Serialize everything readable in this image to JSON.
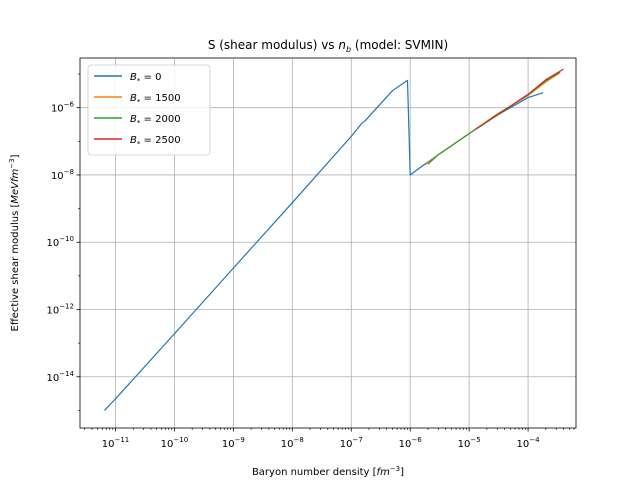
{
  "chart_data": {
    "type": "line",
    "title": "S (shear modulus) vs n_b (model: SVMIN)",
    "title_parts": {
      "prefix": "S (shear modulus) vs ",
      "var": "n",
      "sub": "b",
      "suffix": " (model: SVMIN)"
    },
    "xlabel": "Baryon number density [fm⁻³]",
    "xlabel_parts": {
      "prefix": "Baryon number density [",
      "unit": "fm",
      "exp": "−3",
      "suffix": "]"
    },
    "ylabel": "Effective shear modulus [MeVfm⁻³]",
    "ylabel_parts": {
      "prefix": "Effective shear modulus [",
      "unit": "MeVfm",
      "exp": "−3",
      "suffix": "]"
    },
    "xscale": "log",
    "yscale": "log",
    "xlim": [
      2.5e-12,
      0.00065
    ],
    "ylim": [
      3e-16,
      3e-05
    ],
    "xticks": [
      1e-11,
      1e-10,
      1e-09,
      1e-08,
      1e-07,
      1e-06,
      1e-05,
      0.0001
    ],
    "xtick_labels": [
      {
        "base": "10",
        "exp": "−11"
      },
      {
        "base": "10",
        "exp": "−10"
      },
      {
        "base": "10",
        "exp": "−9"
      },
      {
        "base": "10",
        "exp": "−8"
      },
      {
        "base": "10",
        "exp": "−7"
      },
      {
        "base": "10",
        "exp": "−6"
      },
      {
        "base": "10",
        "exp": "−5"
      },
      {
        "base": "10",
        "exp": "−4"
      }
    ],
    "yticks": [
      1e-14,
      1e-12,
      1e-10,
      1e-08,
      1e-06
    ],
    "ytick_labels": [
      {
        "base": "10",
        "exp": "−14"
      },
      {
        "base": "10",
        "exp": "−12"
      },
      {
        "base": "10",
        "exp": "−10"
      },
      {
        "base": "10",
        "exp": "−8"
      },
      {
        "base": "10",
        "exp": "−6"
      }
    ],
    "grid": true,
    "legend_position": "top-left",
    "series": [
      {
        "name": "B* = 0",
        "label_parts": {
          "sym": "B",
          "sub": "*",
          "value": " = 0"
        },
        "color": "#1f77b4",
        "x": [
          6.5e-12,
          1e-11,
          1e-10,
          1e-09,
          1e-08,
          1e-07,
          1.5e-07,
          1.7e-07,
          5e-07,
          9e-07,
          1e-06,
          1.5e-06,
          3e-06,
          1e-05,
          3e-05,
          0.0001,
          0.00018
        ],
        "y": [
          1e-15,
          2.2e-15,
          1.9e-13,
          1.7e-11,
          1.5e-09,
          1.4e-07,
          3.4e-07,
          4e-07,
          3.2e-06,
          6.5e-06,
          1e-08,
          1.7e-08,
          4e-08,
          1.7e-07,
          6e-07,
          2e-06,
          2.8e-06
        ]
      },
      {
        "name": "B* = 1500",
        "label_parts": {
          "sym": "B",
          "sub": "*",
          "value": " = 1500"
        },
        "color": "#ff7f0e",
        "x": [
          1.8e-06,
          3e-06,
          1e-05,
          3e-05,
          0.0001,
          0.0002,
          0.00035
        ],
        "y": [
          2e-08,
          4e-08,
          1.7e-07,
          6.5e-07,
          2.3e-06,
          5.8e-06,
          1.1e-05
        ]
      },
      {
        "name": "B* = 2000",
        "label_parts": {
          "sym": "B",
          "sub": "*",
          "value": " = 2000"
        },
        "color": "#2ca02c",
        "x": [
          2e-06,
          3e-06,
          1e-05,
          3e-05,
          0.0001,
          0.0002,
          0.00035
        ],
        "y": [
          2.1e-08,
          4e-08,
          1.7e-07,
          6.3e-07,
          2.4e-06,
          6.3e-06,
          1.15e-05
        ]
      },
      {
        "name": "B* = 2500",
        "label_parts": {
          "sym": "B",
          "sub": "*",
          "value": " = 2500"
        },
        "color": "#d62728",
        "x": [
          1.3e-05,
          3e-05,
          0.0001,
          0.0002,
          0.0004
        ],
        "y": [
          2.3e-07,
          6e-07,
          2.5e-06,
          6.8e-06,
          1.4e-05
        ]
      }
    ]
  }
}
